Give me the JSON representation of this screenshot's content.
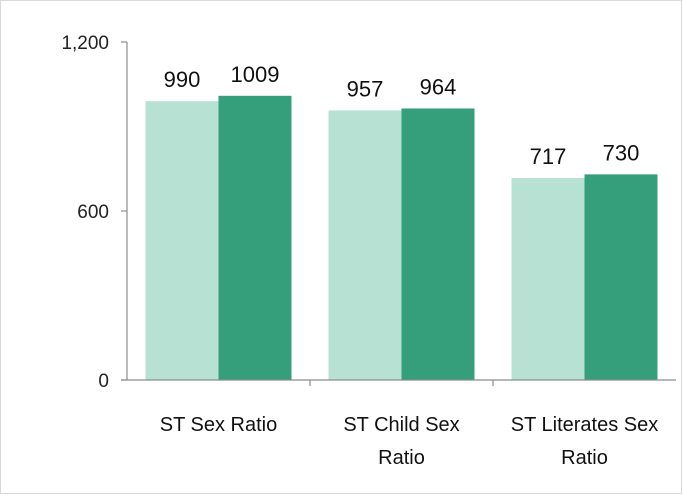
{
  "chart_data": {
    "type": "bar",
    "categories": [
      [
        "ST Sex Ratio"
      ],
      [
        "ST Child Sex",
        "Ratio"
      ],
      [
        "ST Literates Sex",
        "Ratio"
      ]
    ],
    "series": [
      {
        "values": [
          990,
          957,
          717
        ],
        "color": "#b7e1d2"
      },
      {
        "values": [
          1009,
          964,
          730
        ],
        "color": "#359e7b"
      }
    ],
    "data_labels": [
      [
        "990",
        "957",
        "717"
      ],
      [
        "1009",
        "964",
        "730"
      ]
    ],
    "ylim": [
      0,
      1200
    ],
    "yticks": [
      0,
      600,
      1200
    ],
    "ytick_labels": [
      "0",
      "600",
      "1,200"
    ],
    "grid": false,
    "legend": "none",
    "title": "",
    "xlabel": "",
    "ylabel": ""
  },
  "colors": {
    "axis": "#8c8c8c",
    "frame": "#d9d9d9"
  }
}
